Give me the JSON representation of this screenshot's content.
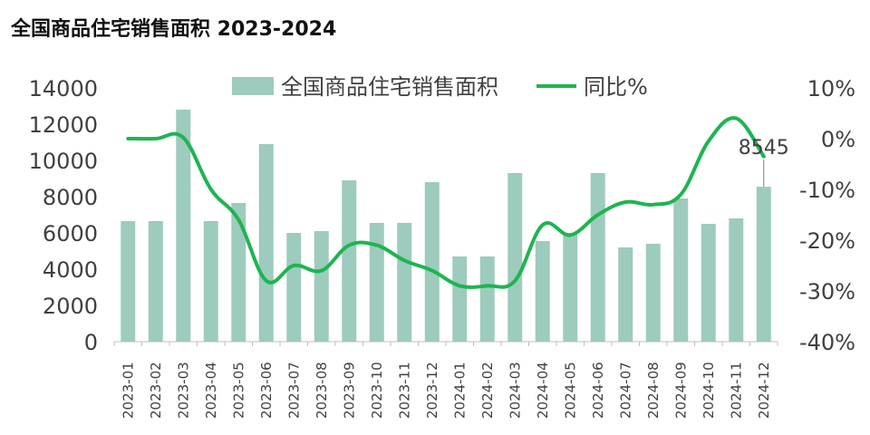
{
  "chart_data": {
    "type": "bar",
    "title": "全国商品住宅销售面积 2023-2024",
    "categories": [
      "2023-01",
      "2023-02",
      "2023-03",
      "2023-04",
      "2023-05",
      "2023-06",
      "2023-07",
      "2023-08",
      "2023-09",
      "2023-10",
      "2023-11",
      "2023-12",
      "2024-01",
      "2024-02",
      "2024-03",
      "2024-04",
      "2024-05",
      "2024-06",
      "2024-07",
      "2024-08",
      "2024-09",
      "2024-10",
      "2024-11",
      "2024-12"
    ],
    "series": [
      {
        "name": "全国商品住宅销售面积",
        "type": "bar",
        "axis": "left",
        "color": "#9dcbbd",
        "values": [
          6650,
          6650,
          12800,
          6650,
          7650,
          10900,
          6000,
          6100,
          8900,
          6550,
          6550,
          8800,
          4700,
          4700,
          9300,
          5550,
          6000,
          9300,
          5200,
          5400,
          7900,
          6500,
          6800,
          8545
        ]
      },
      {
        "name": "同比%",
        "type": "line",
        "axis": "right",
        "color": "#1db550",
        "values": [
          0.0,
          0.0,
          0.2,
          -10.0,
          -16.0,
          -28.0,
          -25.0,
          -26.0,
          -21.0,
          -21.0,
          -24.0,
          -26.0,
          -29.0,
          -29.0,
          -28.0,
          -17.0,
          -19.0,
          -15.0,
          -12.5,
          -13.0,
          -11.0,
          -0.5,
          4.0,
          -3.5
        ]
      }
    ],
    "y_left": {
      "ylim": [
        0,
        14000
      ],
      "ticks": [
        "0",
        "2000",
        "4000",
        "6000",
        "8000",
        "10000",
        "12000",
        "14000"
      ]
    },
    "y_right": {
      "ylim": [
        -40,
        10
      ],
      "ticks": [
        "-40%",
        "-30%",
        "-20%",
        "-10%",
        "0%",
        "10%"
      ]
    },
    "annotation": {
      "text": "8545",
      "category": "2024-12"
    },
    "legend": {
      "position": "top",
      "items": [
        "全国商品住宅销售面积",
        "同比%"
      ]
    },
    "grid": false
  }
}
